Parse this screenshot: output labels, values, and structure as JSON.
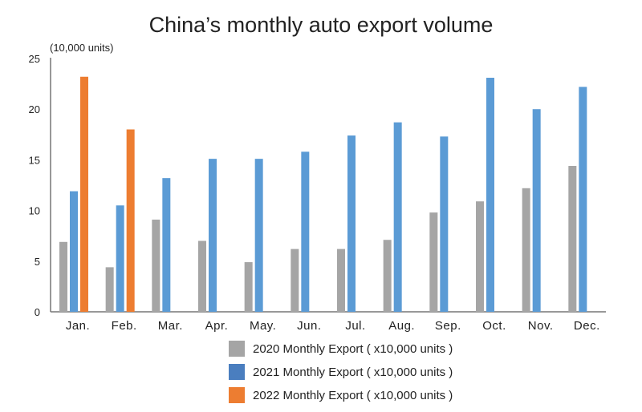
{
  "chart_data": {
    "type": "bar",
    "title": "China’s monthly auto export volume",
    "ylabel": "(10,000 units)",
    "xlabel": "",
    "ylim": [
      0,
      25
    ],
    "yticks": [
      "0",
      "5",
      "10",
      "15",
      "20",
      "25"
    ],
    "grid": false,
    "legend_position": "bottom",
    "categories": [
      "Jan.",
      "Feb.",
      "Mar.",
      "Apr.",
      "May.",
      "Jun.",
      "Jul.",
      "Aug.",
      "Sep.",
      "Oct.",
      "Nov.",
      "Dec."
    ],
    "series": [
      {
        "name": "2020 Monthly Export ( x10,000 units )",
        "color": "#a5a5a5",
        "values": [
          6.9,
          4.4,
          9.1,
          7.0,
          4.9,
          6.2,
          6.2,
          7.1,
          9.8,
          10.9,
          12.2,
          14.4
        ]
      },
      {
        "name": "2021 Monthly Export ( x10,000 units )",
        "color": "#5b9bd5",
        "legend_color": "#4a7ebf",
        "values": [
          11.9,
          10.5,
          13.2,
          15.1,
          15.1,
          15.8,
          17.4,
          18.7,
          17.3,
          23.1,
          20.0,
          22.2
        ]
      },
      {
        "name": "2022 Monthly Export ( x10,000 units )",
        "color": "#ed7d31",
        "values": [
          23.2,
          18.0,
          null,
          null,
          null,
          null,
          null,
          null,
          null,
          null,
          null,
          null
        ]
      }
    ]
  }
}
